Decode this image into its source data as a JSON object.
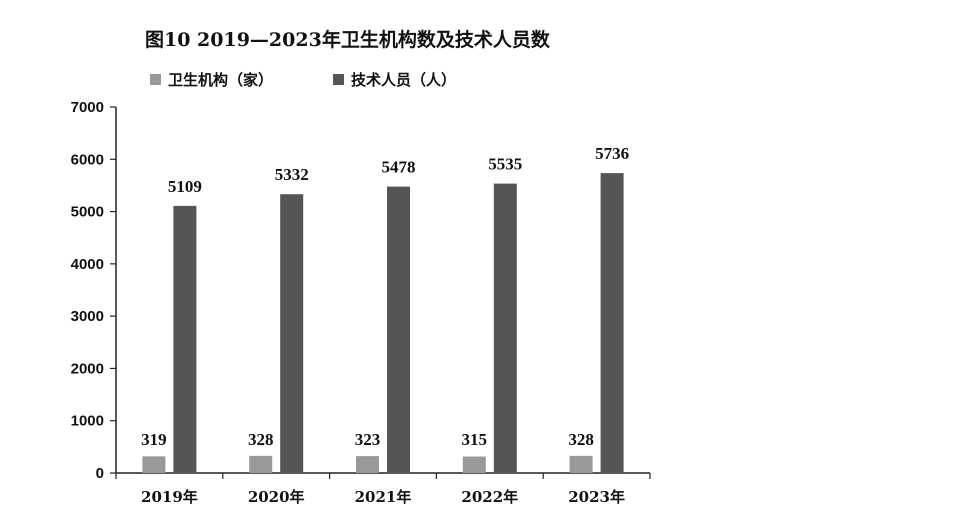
{
  "chart_data": {
    "type": "bar",
    "title": "图10 2019—2023年卫生机构数及技术人员数",
    "categories": [
      "2019年",
      "2020年",
      "2021年",
      "2022年",
      "2023年"
    ],
    "series": [
      {
        "name": "卫生机构（家）",
        "values": [
          319,
          328,
          323,
          315,
          328
        ],
        "color": "#999999"
      },
      {
        "name": "技术人员（人）",
        "values": [
          5109,
          5332,
          5478,
          5535,
          5736
        ],
        "color": "#555555"
      }
    ],
    "ylim": [
      0,
      7000
    ],
    "yticks": [
      0,
      1000,
      2000,
      3000,
      4000,
      5000,
      6000,
      7000
    ],
    "xlabel": "",
    "ylabel": "",
    "grid": false,
    "legend_position": "top-left",
    "data_labels": true
  }
}
